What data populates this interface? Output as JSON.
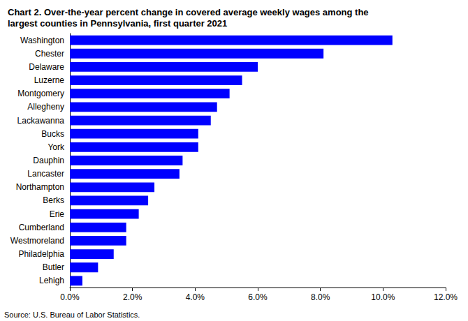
{
  "chart_data": {
    "type": "bar",
    "title": "Chart 2. Over-the-year percent change in covered average weekly wages among the largest counties in Pennsylvania, first quarter 2021",
    "annotations": [
      "Source: U.S. Bureau of Labor Statistics."
    ],
    "orientation": "horizontal",
    "categories": [
      "Washington",
      "Chester",
      "Delaware",
      "Luzerne",
      "Montgomery",
      "Allegheny",
      "Lackawanna",
      "Bucks",
      "York",
      "Dauphin",
      "Lancaster",
      "Northampton",
      "Berks",
      "Erie",
      "Cumberland",
      "Westmoreland",
      "Philadelphia",
      "Butler",
      "Lehigh"
    ],
    "values": [
      10.3,
      8.1,
      6.0,
      5.5,
      5.1,
      4.7,
      4.5,
      4.1,
      4.1,
      3.6,
      3.5,
      2.7,
      2.5,
      2.2,
      1.8,
      1.8,
      1.4,
      0.9,
      0.4
    ],
    "color": "#0000ff",
    "xlim": [
      0,
      12
    ],
    "xticks": [
      {
        "value": 0,
        "label": "0.0%"
      },
      {
        "value": 2,
        "label": "2.0%"
      },
      {
        "value": 4,
        "label": "4.0%"
      },
      {
        "value": 6,
        "label": "6.0%"
      },
      {
        "value": 8,
        "label": "8.0%"
      },
      {
        "value": 10,
        "label": "10.0%"
      },
      {
        "value": 12,
        "label": "12.0%"
      }
    ],
    "grid": false
  }
}
